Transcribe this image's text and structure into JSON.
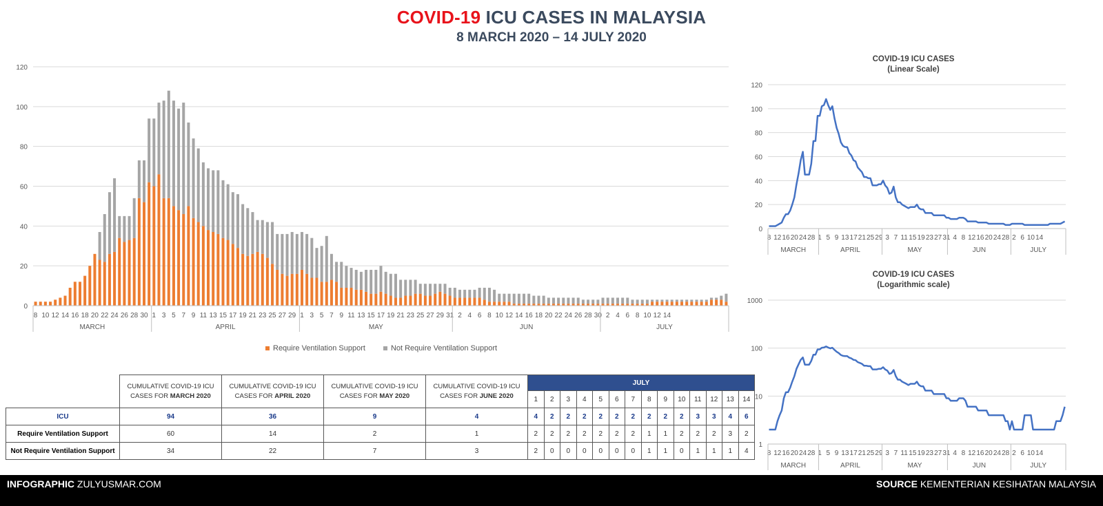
{
  "title": {
    "part1": "COVID-19",
    "part2": "ICU CASES IN MALAYSIA",
    "subtitle": "8 MARCH 2020 – 14 JULY 2020"
  },
  "colors": {
    "require": "#ed7d31",
    "not_require": "#a5a5a5",
    "line": "#4472c4"
  },
  "chart_data": [
    {
      "type": "bar",
      "stacked": true,
      "ylim": [
        0,
        120
      ],
      "yticks": [
        0,
        20,
        40,
        60,
        80,
        100,
        120
      ],
      "x_start": "2020-03-08",
      "x_end": "2020-07-14",
      "x_ticks": [
        "8",
        "10",
        "12",
        "14",
        "16",
        "18",
        "20",
        "22",
        "24",
        "26",
        "28",
        "30",
        "1",
        "3",
        "5",
        "7",
        "9",
        "11",
        "13",
        "15",
        "17",
        "19",
        "21",
        "23",
        "25",
        "27",
        "29",
        "1",
        "3",
        "5",
        "7",
        "9",
        "11",
        "13",
        "15",
        "17",
        "19",
        "21",
        "23",
        "25",
        "27",
        "29",
        "31",
        "2",
        "4",
        "6",
        "8",
        "10",
        "12",
        "14",
        "16",
        "18",
        "20",
        "22",
        "24",
        "26",
        "28",
        "30",
        "2",
        "4",
        "6",
        "8",
        "10",
        "12",
        "14"
      ],
      "months": [
        "MARCH",
        "APRIL",
        "MAY",
        "JUN",
        "JULY"
      ],
      "legend": [
        "Require Ventilation Support",
        "Not Require Ventilation Support"
      ],
      "legend_position": "bottom",
      "series": [
        {
          "name": "Require Ventilation Support",
          "values": [
            2,
            2,
            2,
            2,
            3,
            4,
            5,
            9,
            12,
            12,
            15,
            20,
            26,
            23,
            22,
            26,
            27,
            34,
            32,
            33,
            34,
            54,
            52,
            62,
            60,
            66,
            54,
            54,
            50,
            48,
            46,
            50,
            44,
            42,
            40,
            38,
            37,
            36,
            34,
            33,
            31,
            29,
            26,
            25,
            26,
            27,
            26,
            24,
            21,
            18,
            16,
            15,
            16,
            16,
            18,
            16,
            14,
            14,
            12,
            12,
            13,
            12,
            9,
            9,
            9,
            8,
            8,
            7,
            6,
            6,
            7,
            6,
            5,
            4,
            4,
            5,
            5,
            6,
            6,
            5,
            5,
            6,
            7,
            6,
            5,
            4,
            4,
            4,
            4,
            4,
            4,
            3,
            2,
            2,
            2,
            2,
            2,
            1,
            1,
            1,
            1,
            1,
            1,
            1,
            1,
            1,
            1,
            1,
            1,
            1,
            1,
            1,
            1,
            1,
            1,
            1,
            1,
            1,
            1,
            1,
            1,
            1,
            1,
            1,
            1,
            2,
            2,
            2,
            2,
            2,
            2,
            2,
            2,
            2,
            2,
            2,
            2,
            3,
            3,
            3,
            2
          ]
        },
        {
          "name": "Not Require Ventilation Support",
          "values": [
            0,
            0,
            0,
            0,
            0,
            0,
            0,
            0,
            0,
            0,
            0,
            0,
            0,
            14,
            24,
            31,
            37,
            11,
            13,
            12,
            20,
            19,
            21,
            32,
            34,
            36,
            49,
            54,
            53,
            51,
            56,
            42,
            40,
            37,
            32,
            31,
            31,
            32,
            29,
            28,
            26,
            27,
            25,
            24,
            21,
            16,
            17,
            18,
            21,
            18,
            20,
            21,
            21,
            20,
            19,
            20,
            20,
            15,
            18,
            23,
            13,
            10,
            13,
            11,
            10,
            10,
            9,
            11,
            12,
            12,
            13,
            11,
            11,
            12,
            9,
            8,
            8,
            7,
            5,
            6,
            6,
            5,
            4,
            5,
            4,
            5,
            4,
            4,
            4,
            4,
            5,
            6,
            7,
            6,
            4,
            4,
            4,
            5,
            5,
            5,
            5,
            4,
            4,
            4,
            3,
            3,
            3,
            3,
            3,
            3,
            3,
            2,
            2,
            2,
            2,
            3,
            3,
            3,
            3,
            3,
            3,
            2,
            2,
            2,
            2,
            1,
            1,
            1,
            1,
            1,
            1,
            1,
            1,
            1,
            1,
            1,
            1,
            1,
            1,
            2,
            4
          ]
        }
      ]
    },
    {
      "type": "line",
      "title": "COVID-19 ICU CASES",
      "subtitle": "(Linear Scale)",
      "ylim": [
        0,
        120
      ],
      "yticks": [
        0,
        20,
        40,
        60,
        80,
        100,
        120
      ],
      "x_ticks": [
        "8",
        "12",
        "16",
        "20",
        "24",
        "28",
        "1",
        "5",
        "9",
        "13",
        "17",
        "21",
        "25",
        "29",
        "3",
        "7",
        "11",
        "15",
        "19",
        "23",
        "27",
        "31",
        "4",
        "8",
        "12",
        "16",
        "20",
        "24",
        "28",
        "2",
        "6",
        "10",
        "14"
      ],
      "months": [
        "MARCH",
        "APRIL",
        "MAY",
        "JUN",
        "JULY"
      ],
      "x_start": "2020-03-08",
      "x_end": "2020-07-14",
      "series": [
        {
          "name": "ICU",
          "values": [
            2,
            2,
            2,
            2,
            3,
            4,
            5,
            9,
            12,
            12,
            15,
            20,
            26,
            37,
            46,
            57,
            64,
            45,
            45,
            45,
            54,
            73,
            73,
            94,
            94,
            102,
            103,
            108,
            103,
            99,
            102,
            92,
            84,
            79,
            72,
            69,
            68,
            68,
            63,
            61,
            57,
            56,
            51,
            49,
            47,
            43,
            43,
            42,
            42,
            36,
            36,
            36,
            37,
            37,
            40,
            36,
            34,
            29,
            30,
            35,
            26,
            22,
            22,
            20,
            19,
            18,
            17,
            18,
            18,
            18,
            20,
            17,
            16,
            16,
            13,
            13,
            13,
            13,
            11,
            11,
            11,
            11,
            11,
            11,
            9,
            9,
            8,
            8,
            8,
            8,
            9,
            9,
            9,
            8,
            6,
            6,
            6,
            6,
            6,
            5,
            5,
            5,
            5,
            5,
            4,
            4,
            4,
            4,
            4,
            4,
            4,
            4,
            3,
            3,
            3,
            4,
            4,
            4,
            4,
            4,
            4,
            3,
            3,
            3,
            3,
            3,
            3,
            3,
            3,
            3,
            3,
            3,
            3,
            4,
            4,
            4,
            4,
            4,
            4,
            5,
            6
          ]
        }
      ]
    },
    {
      "type": "line",
      "title": "COVID-19 ICU CASES",
      "subtitle": "(Logarithmic scale)",
      "yscale": "log",
      "ylim": [
        1,
        1000
      ],
      "yticks": [
        1,
        10,
        100,
        1000
      ],
      "x_ticks": [
        "8",
        "12",
        "16",
        "20",
        "24",
        "28",
        "1",
        "5",
        "9",
        "13",
        "17",
        "21",
        "25",
        "29",
        "3",
        "7",
        "11",
        "15",
        "19",
        "23",
        "27",
        "31",
        "4",
        "8",
        "12",
        "16",
        "20",
        "24",
        "28",
        "2",
        "6",
        "10",
        "14"
      ],
      "months": [
        "MARCH",
        "APRIL",
        "MAY",
        "JUN",
        "JULY"
      ],
      "x_start": "2020-03-08",
      "x_end": "2020-07-14",
      "series": [
        {
          "name": "ICU",
          "values": [
            2,
            2,
            2,
            2,
            3,
            4,
            5,
            9,
            12,
            12,
            15,
            20,
            26,
            37,
            46,
            57,
            64,
            45,
            45,
            45,
            54,
            73,
            73,
            94,
            94,
            102,
            103,
            108,
            103,
            99,
            102,
            92,
            84,
            79,
            72,
            69,
            68,
            68,
            63,
            61,
            57,
            56,
            51,
            49,
            47,
            43,
            43,
            42,
            42,
            36,
            36,
            36,
            37,
            37,
            40,
            36,
            34,
            29,
            30,
            35,
            26,
            22,
            22,
            20,
            19,
            18,
            17,
            18,
            18,
            18,
            20,
            17,
            16,
            16,
            13,
            13,
            13,
            13,
            11,
            11,
            11,
            11,
            11,
            11,
            9,
            9,
            8,
            8,
            8,
            8,
            9,
            9,
            9,
            8,
            6,
            6,
            6,
            6,
            6,
            5,
            5,
            5,
            5,
            5,
            4,
            4,
            4,
            4,
            4,
            4,
            4,
            4,
            3,
            3,
            2,
            3,
            2,
            2,
            2,
            2,
            2,
            4,
            4,
            4,
            4,
            2,
            2,
            2,
            2,
            2,
            2,
            2,
            2,
            2,
            2,
            2,
            3,
            3,
            3,
            4,
            6
          ]
        }
      ]
    },
    {
      "type": "table",
      "headers": [
        {
          "pre": "CUMULATIVE COVID-19 ICU CASES FOR ",
          "bold": "MARCH 2020"
        },
        {
          "pre": "CUMULATIVE COVID-19 ICU CASES FOR ",
          "bold": "APRIL 2020"
        },
        {
          "pre": "CUMULATIVE COVID-19 ICU CASES FOR ",
          "bold": "MAY 2020"
        },
        {
          "pre": "CUMULATIVE COVID-19 ICU CASES FOR ",
          "bold": "JUNE 2020"
        }
      ],
      "july_label": "JULY",
      "july_days": [
        "1",
        "2",
        "3",
        "4",
        "5",
        "6",
        "7",
        "8",
        "9",
        "10",
        "11",
        "12",
        "13",
        "14"
      ],
      "rows": [
        {
          "label": "ICU",
          "monthly": [
            "94",
            "36",
            "9",
            "4"
          ],
          "july": [
            "4",
            "2",
            "2",
            "2",
            "2",
            "2",
            "2",
            "2",
            "2",
            "2",
            "3",
            "3",
            "4",
            "6"
          ]
        },
        {
          "label": "Require Ventilation Support",
          "monthly": [
            "60",
            "14",
            "2",
            "1"
          ],
          "july": [
            "2",
            "2",
            "2",
            "2",
            "2",
            "2",
            "2",
            "1",
            "1",
            "2",
            "2",
            "2",
            "3",
            "2"
          ]
        },
        {
          "label": "Not Require Ventilation Support",
          "monthly": [
            "34",
            "22",
            "7",
            "3"
          ],
          "july": [
            "2",
            "0",
            "0",
            "0",
            "0",
            "0",
            "0",
            "1",
            "1",
            "0",
            "1",
            "1",
            "1",
            "4"
          ]
        }
      ]
    }
  ],
  "footer": {
    "left_bold": "INFOGRAPHIC",
    "left_text": "ZULYUSMAR.COM",
    "right_bold": "SOURCE",
    "right_text": "KEMENTERIAN KESIHATAN MALAYSIA"
  }
}
